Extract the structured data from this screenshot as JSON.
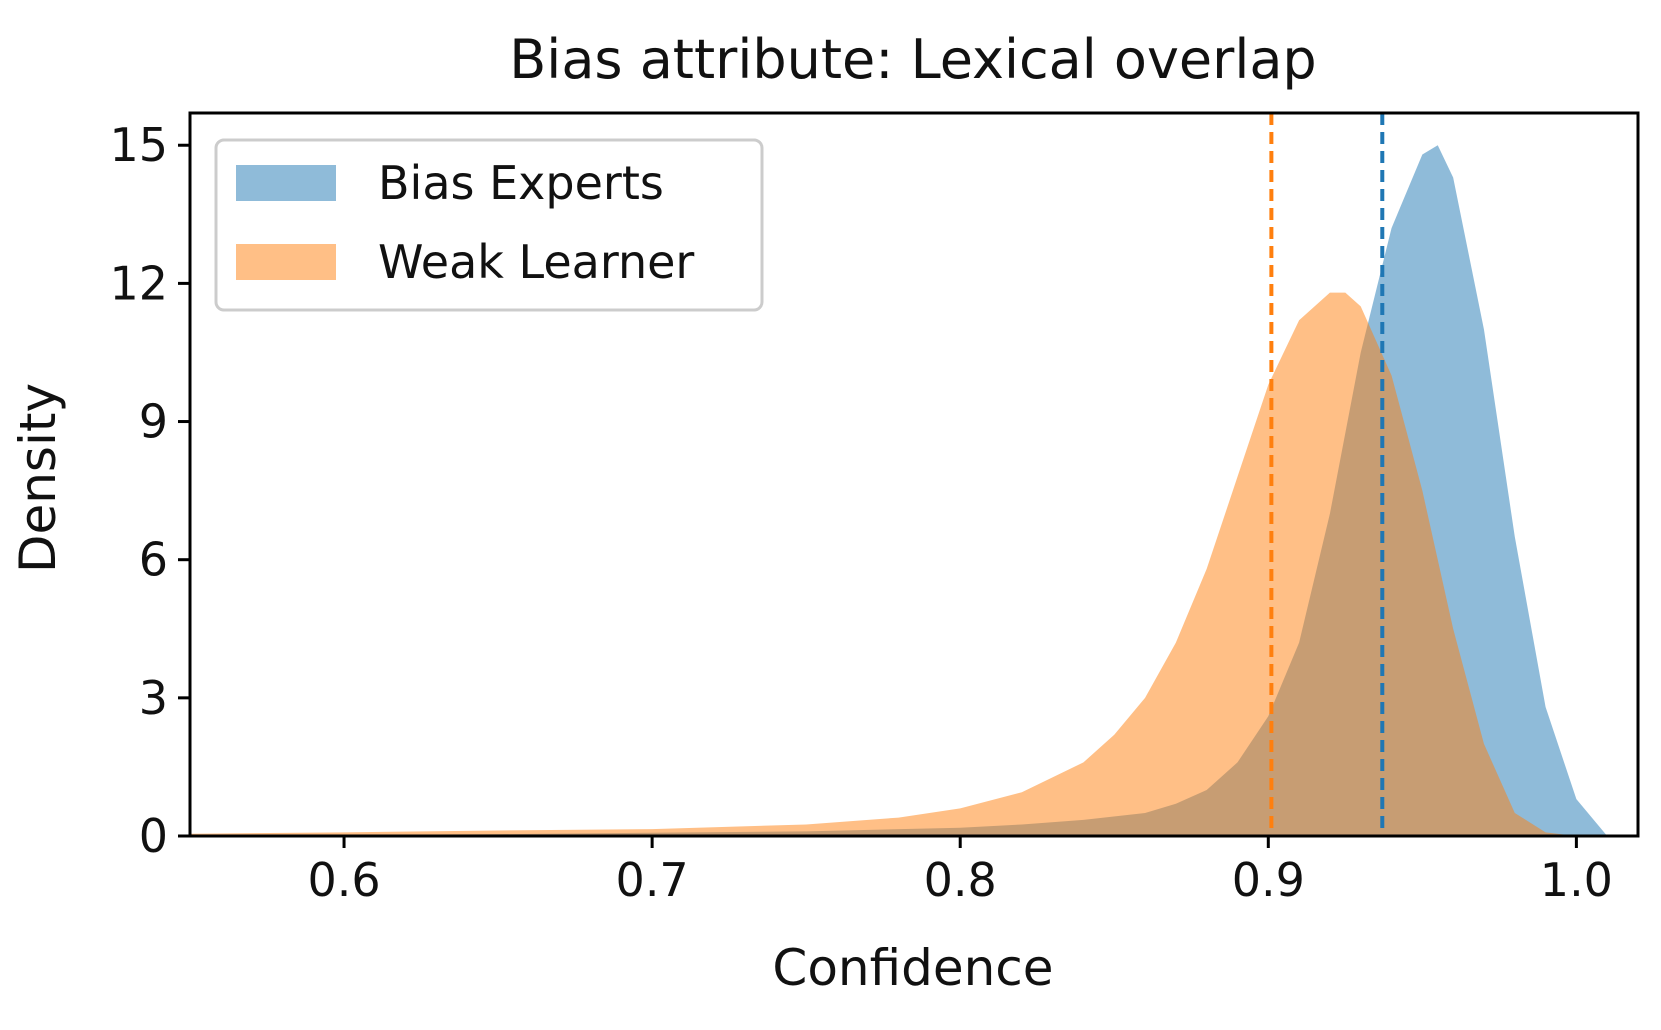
{
  "chart_data": {
    "type": "area",
    "title": "Bias attribute: Lexical overlap",
    "xlabel": "Confidence",
    "ylabel": "Density",
    "xlim": [
      0.55,
      1.02
    ],
    "ylim": [
      0,
      15.7
    ],
    "xticks": [
      0.6,
      0.7,
      0.8,
      0.9,
      1.0
    ],
    "xtick_labels": [
      "0.6",
      "0.7",
      "0.8",
      "0.9",
      "1.0"
    ],
    "yticks": [
      0,
      3,
      6,
      9,
      12,
      15
    ],
    "ytick_labels": [
      "0",
      "3",
      "6",
      "9",
      "12",
      "15"
    ],
    "grid": false,
    "legend_position": "top-left",
    "series": [
      {
        "name": "Bias Experts",
        "color": "#1f77b4",
        "fill_opacity": 0.5,
        "mean_line": 0.937,
        "points": [
          [
            0.55,
            0.0
          ],
          [
            0.6,
            0.02
          ],
          [
            0.65,
            0.04
          ],
          [
            0.7,
            0.07
          ],
          [
            0.75,
            0.1
          ],
          [
            0.8,
            0.18
          ],
          [
            0.82,
            0.25
          ],
          [
            0.84,
            0.35
          ],
          [
            0.86,
            0.5
          ],
          [
            0.87,
            0.7
          ],
          [
            0.88,
            1.0
          ],
          [
            0.89,
            1.6
          ],
          [
            0.9,
            2.6
          ],
          [
            0.91,
            4.2
          ],
          [
            0.92,
            7.0
          ],
          [
            0.93,
            10.5
          ],
          [
            0.94,
            13.2
          ],
          [
            0.95,
            14.8
          ],
          [
            0.955,
            15.0
          ],
          [
            0.96,
            14.3
          ],
          [
            0.97,
            11.0
          ],
          [
            0.98,
            6.5
          ],
          [
            0.99,
            2.8
          ],
          [
            1.0,
            0.8
          ],
          [
            1.01,
            0.0
          ]
        ]
      },
      {
        "name": "Weak Learner",
        "color": "#ff7f0e",
        "fill_opacity": 0.5,
        "mean_line": 0.901,
        "points": [
          [
            0.55,
            0.05
          ],
          [
            0.6,
            0.08
          ],
          [
            0.65,
            0.12
          ],
          [
            0.7,
            0.15
          ],
          [
            0.75,
            0.25
          ],
          [
            0.78,
            0.4
          ],
          [
            0.8,
            0.6
          ],
          [
            0.82,
            0.95
          ],
          [
            0.84,
            1.6
          ],
          [
            0.85,
            2.2
          ],
          [
            0.86,
            3.0
          ],
          [
            0.87,
            4.2
          ],
          [
            0.88,
            5.8
          ],
          [
            0.89,
            7.8
          ],
          [
            0.9,
            9.8
          ],
          [
            0.91,
            11.2
          ],
          [
            0.92,
            11.8
          ],
          [
            0.925,
            11.8
          ],
          [
            0.93,
            11.5
          ],
          [
            0.94,
            10.0
          ],
          [
            0.95,
            7.5
          ],
          [
            0.96,
            4.5
          ],
          [
            0.97,
            2.0
          ],
          [
            0.98,
            0.5
          ],
          [
            0.99,
            0.08
          ],
          [
            1.0,
            0.0
          ]
        ]
      }
    ]
  }
}
